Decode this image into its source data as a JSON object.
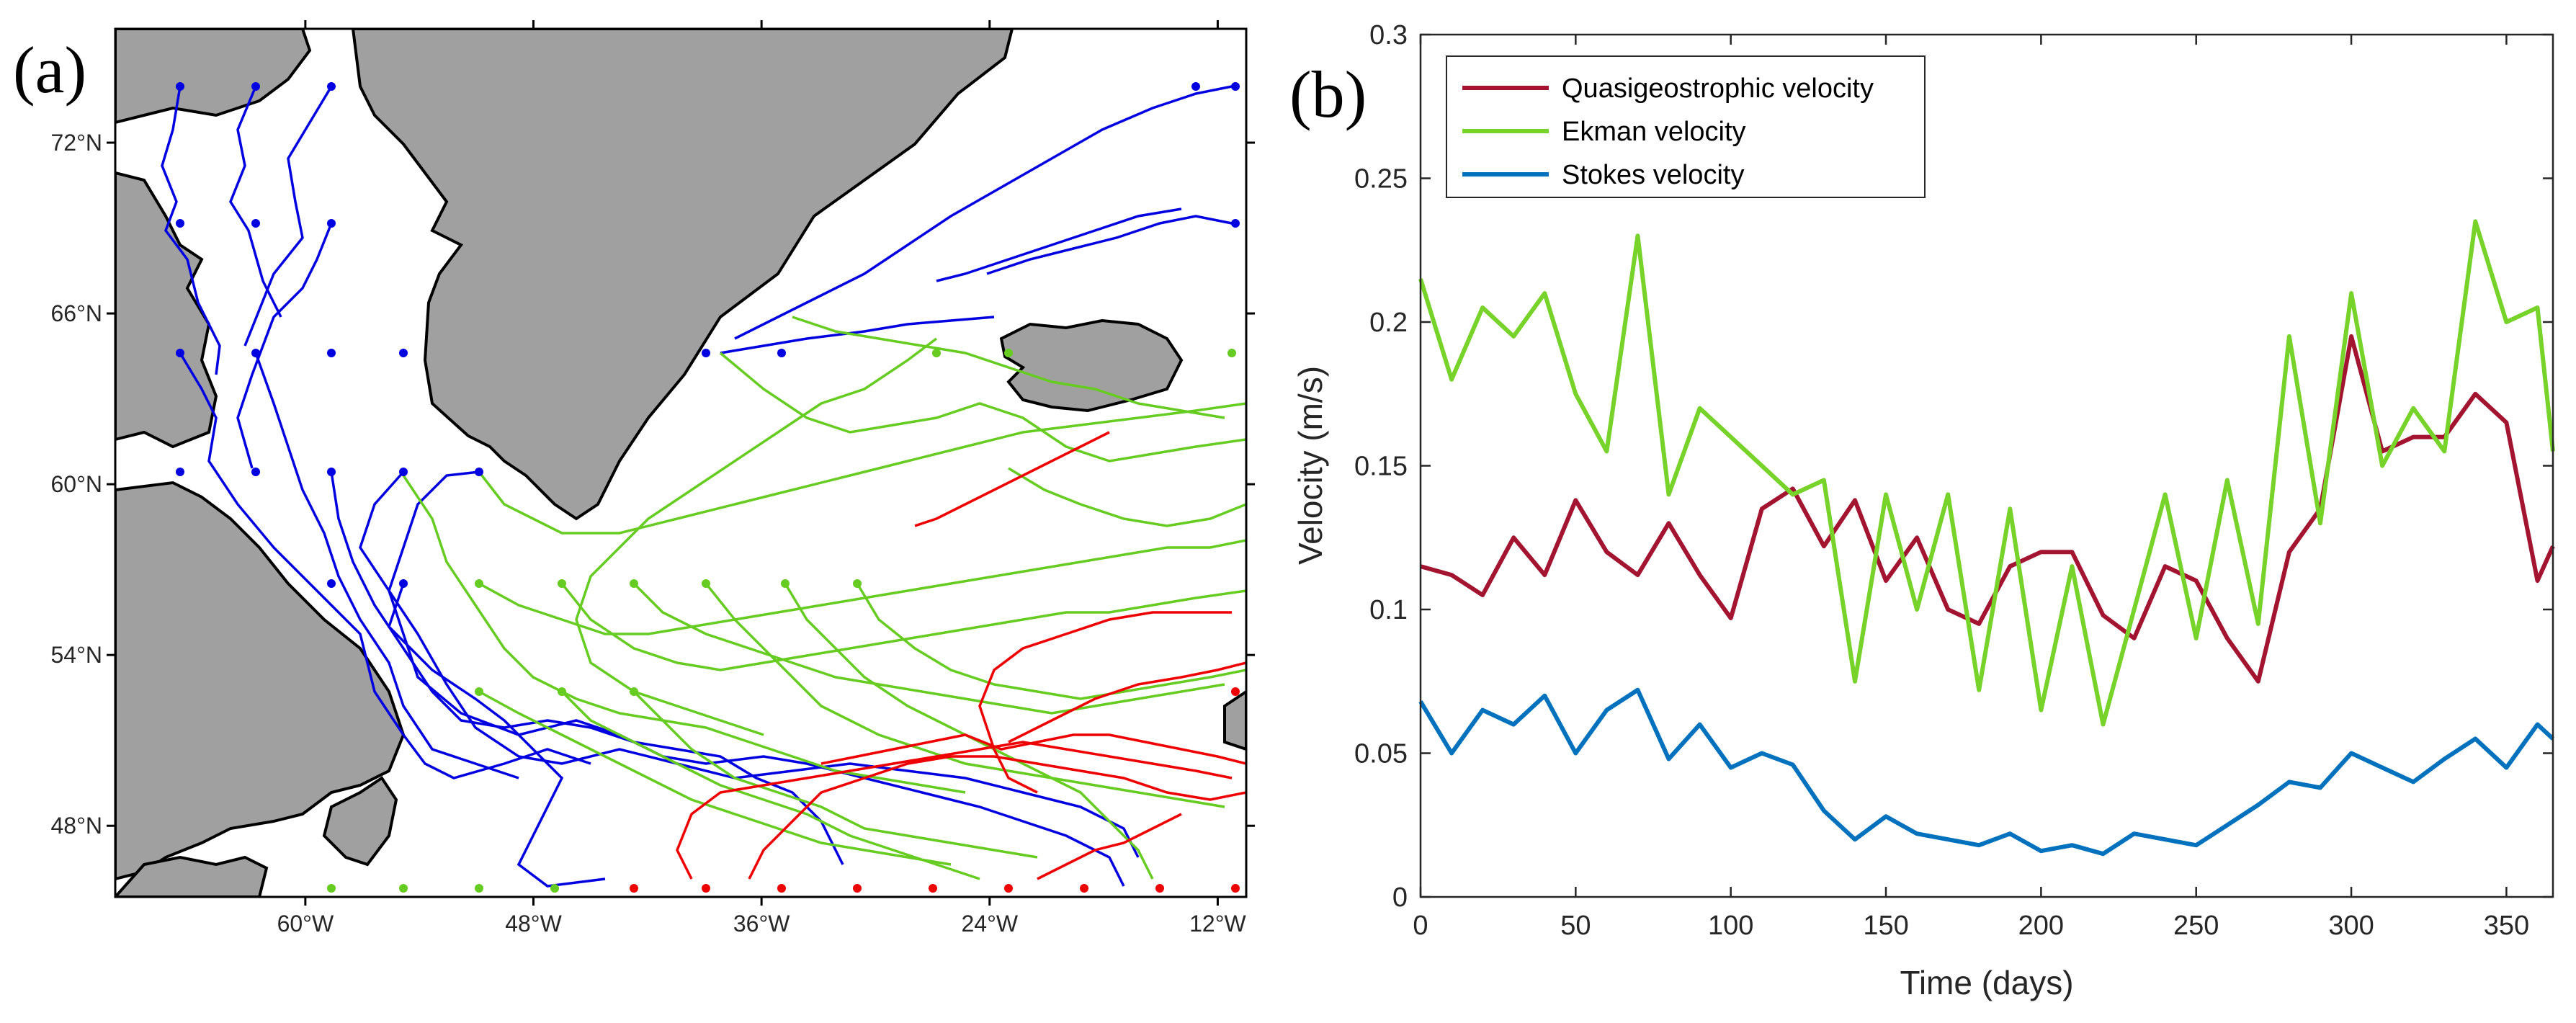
{
  "panel_a": {
    "label": "(a)",
    "lat_ticks": [
      {
        "lat": 72,
        "label": "72°N"
      },
      {
        "lat": 66,
        "label": "66°N"
      },
      {
        "lat": 60,
        "label": "60°N"
      },
      {
        "lat": 54,
        "label": "54°N"
      },
      {
        "lat": 48,
        "label": "48°N"
      }
    ],
    "lon_ticks": [
      {
        "lon": -60,
        "label": "60°W"
      },
      {
        "lon": -48,
        "label": "48°W"
      },
      {
        "lon": -36,
        "label": "36°W"
      },
      {
        "lon": -24,
        "label": "24°W"
      },
      {
        "lon": -12,
        "label": "12°W"
      }
    ],
    "extent": {
      "lon_min": -70,
      "lon_max": -10.5,
      "lat_min": 45.5,
      "lat_max": 76
    },
    "colors": {
      "blue": "#0000e0",
      "green": "#66cc22",
      "red": "#ee0000",
      "land": "#a0a0a0"
    }
  },
  "chart_data": {
    "type": "line",
    "label": "(b)",
    "title": "",
    "xlabel": "Time (days)",
    "ylabel": "Velocity (m/s)",
    "xlim": [
      0,
      365
    ],
    "ylim": [
      0,
      0.3
    ],
    "xticks": [
      0,
      50,
      100,
      150,
      200,
      250,
      300,
      350
    ],
    "xtick_labels": [
      "0",
      "50",
      "100",
      "150",
      "200",
      "250",
      "300",
      "350"
    ],
    "yticks": [
      0,
      0.05,
      0.1,
      0.15,
      0.2,
      0.25,
      0.3
    ],
    "ytick_labels": [
      "0",
      "0.05",
      "0.1",
      "0.15",
      "0.2",
      "0.25",
      "0.3"
    ],
    "legend_position": "top-left",
    "x": [
      0,
      10,
      20,
      30,
      40,
      50,
      60,
      70,
      80,
      90,
      100,
      110,
      120,
      130,
      140,
      150,
      160,
      170,
      180,
      190,
      200,
      210,
      220,
      230,
      240,
      250,
      260,
      270,
      280,
      290,
      300,
      310,
      320,
      330,
      340,
      350,
      360,
      365
    ],
    "series": [
      {
        "name": "Quasigeostrophic velocity",
        "color": "#a2142f",
        "values": [
          0.115,
          0.112,
          0.105,
          0.125,
          0.112,
          0.138,
          0.12,
          0.112,
          0.13,
          0.112,
          0.097,
          0.135,
          0.142,
          0.122,
          0.138,
          0.11,
          0.125,
          0.1,
          0.095,
          0.115,
          0.12,
          0.12,
          0.098,
          0.09,
          0.115,
          0.11,
          0.09,
          0.075,
          0.12,
          0.135,
          0.195,
          0.155,
          0.16,
          0.16,
          0.175,
          0.165,
          0.11,
          0.122
        ]
      },
      {
        "name": "Ekman velocity",
        "color": "#77d22a",
        "values": [
          0.215,
          0.18,
          0.205,
          0.195,
          0.21,
          0.175,
          0.155,
          0.23,
          0.14,
          0.17,
          0.16,
          0.15,
          0.14,
          0.145,
          0.075,
          0.14,
          0.1,
          0.14,
          0.072,
          0.135,
          0.065,
          0.115,
          0.06,
          0.1,
          0.14,
          0.09,
          0.145,
          0.095,
          0.195,
          0.13,
          0.21,
          0.15,
          0.17,
          0.155,
          0.235,
          0.2,
          0.205,
          0.155
        ]
      },
      {
        "name": "Stokes velocity",
        "color": "#0072bd",
        "values": [
          0.068,
          0.05,
          0.065,
          0.06,
          0.07,
          0.05,
          0.065,
          0.072,
          0.048,
          0.06,
          0.045,
          0.05,
          0.046,
          0.03,
          0.02,
          0.028,
          0.022,
          0.02,
          0.018,
          0.022,
          0.016,
          0.018,
          0.015,
          0.022,
          0.02,
          0.018,
          0.025,
          0.032,
          0.04,
          0.038,
          0.05,
          0.045,
          0.04,
          0.048,
          0.055,
          0.045,
          0.06,
          0.055
        ]
      }
    ]
  }
}
